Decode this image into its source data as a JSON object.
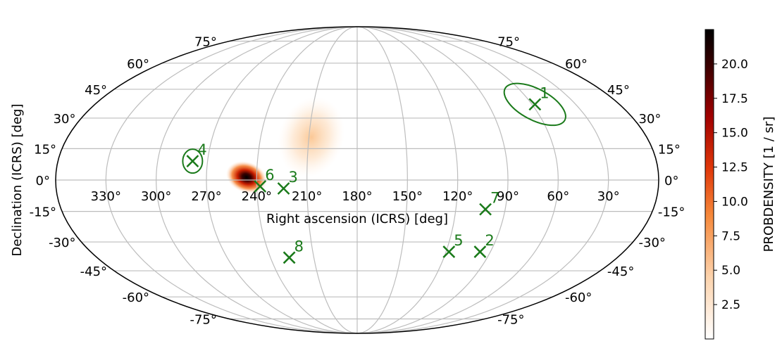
{
  "chart_data": {
    "type": "scatter",
    "projection": "mollweide",
    "xlabel": "Right ascension (ICRS) [deg]",
    "ylabel": "Declination (ICRS) [deg]",
    "ra_tick_labels": [
      "330°",
      "300°",
      "270°",
      "240°",
      "210°",
      "180°",
      "150°",
      "120°",
      "90°",
      "60°",
      "30°"
    ],
    "ra_tick_values": [
      330,
      300,
      270,
      240,
      210,
      180,
      150,
      120,
      90,
      60,
      30
    ],
    "dec_tick_left": [
      "75°",
      "60°",
      "45°",
      "30°",
      "15°",
      "0°",
      "-15°",
      "-30°",
      "-45°",
      "-60°",
      "-75°"
    ],
    "dec_tick_right": [
      "75°",
      "60°",
      "45°",
      "30°",
      "15°",
      "0°",
      "-15°",
      "-30°",
      "-45°",
      "-60°",
      "-75°"
    ],
    "dec_tick_values": [
      75,
      60,
      45,
      30,
      15,
      0,
      -15,
      -30,
      -45,
      -60,
      -75
    ],
    "grid": true,
    "points": [
      {
        "label": "1",
        "ra": 58,
        "dec": 37,
        "error_ellipse": true
      },
      {
        "label": "2",
        "ra": 97,
        "dec": -35,
        "error_ellipse": false
      },
      {
        "label": "3",
        "ra": 224,
        "dec": -4,
        "error_ellipse": false
      },
      {
        "label": "4",
        "ra": 279,
        "dec": 9,
        "error_ellipse": true
      },
      {
        "label": "5",
        "ra": 118,
        "dec": -35,
        "error_ellipse": false
      },
      {
        "label": "6",
        "ra": 238,
        "dec": -3,
        "error_ellipse": false
      },
      {
        "label": "7",
        "ra": 102,
        "dec": -14,
        "error_ellipse": false
      },
      {
        "label": "8",
        "ra": 227,
        "dec": -38,
        "error_ellipse": false
      }
    ],
    "colorbar": {
      "label": "PROBDENSITY [1 / sr]",
      "ticks": [
        "2.5",
        "5.0",
        "7.5",
        "10.0",
        "12.5",
        "15.0",
        "17.5",
        "20.0"
      ],
      "tick_values": [
        2.5,
        5.0,
        7.5,
        10.0,
        12.5,
        15.0,
        17.5,
        20.0
      ],
      "range": [
        0,
        22.5
      ],
      "colormap": "cylon"
    },
    "marker_color": "#1a7a1a"
  }
}
